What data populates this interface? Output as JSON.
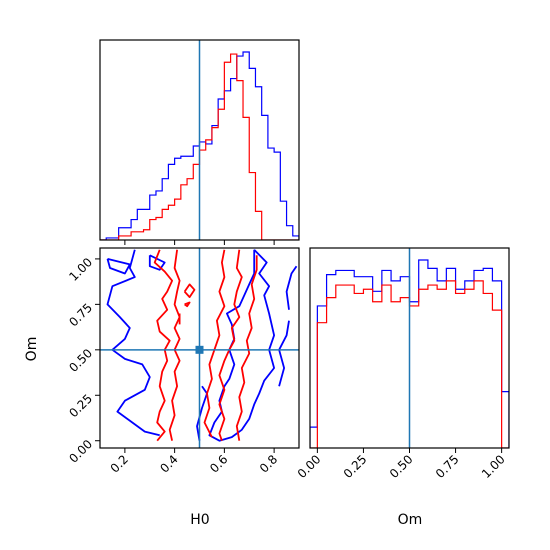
{
  "chart_data": {
    "type": "corner",
    "parameters": [
      "H0",
      "Om"
    ],
    "truths": {
      "H0": 0.5,
      "Om": 0.5
    },
    "colors": {
      "series_a": "#0000ff",
      "series_b": "#ff0000",
      "truth": "#1f77b4"
    },
    "panels": [
      {
        "id": "h0-hist",
        "type": "histogram",
        "xlim": [
          0.1,
          0.9
        ],
        "xticks": [
          0.2,
          0.4,
          0.6,
          0.8
        ],
        "bin_edges": [
          0.1,
          0.125,
          0.15,
          0.175,
          0.2,
          0.225,
          0.25,
          0.275,
          0.3,
          0.325,
          0.35,
          0.375,
          0.4,
          0.425,
          0.45,
          0.475,
          0.5,
          0.525,
          0.55,
          0.575,
          0.6,
          0.625,
          0.65,
          0.675,
          0.7,
          0.725,
          0.75,
          0.775,
          0.8,
          0.825,
          0.85,
          0.875,
          0.9
        ],
        "series": [
          {
            "color": "#0000ff",
            "counts": [
              0,
              1,
              1,
              6,
              6,
              10,
              15,
              15,
              22,
              24,
              30,
              37,
              40,
              41,
              41,
              46,
              48,
              47,
              56,
              69,
              73,
              79,
              90,
              92,
              84,
              75,
              61,
              45,
              43,
              19,
              7,
              2
            ]
          },
          {
            "color": "#ff0000",
            "counts": [
              0,
              0,
              0,
              2,
              2,
              4,
              4,
              5,
              10,
              11,
              15,
              17,
              20,
              27,
              30,
              37,
              44,
              49,
              55,
              64,
              87,
              91,
              78,
              60,
              33,
              14,
              0,
              0,
              0,
              0,
              0,
              0
            ]
          }
        ]
      },
      {
        "id": "h0-om-contours",
        "type": "contour",
        "xlim": [
          0.1,
          0.9
        ],
        "ylim": [
          -0.04,
          1.06
        ],
        "xticks": [
          0.2,
          0.4,
          0.6,
          0.8
        ],
        "yticks": [
          0.0,
          0.25,
          0.5,
          0.75,
          1.0
        ],
        "xlabel": "H0",
        "ylabel": "Om",
        "contours": [
          {
            "color": "#0000ff",
            "points": [
              [
                0.24,
                1.05
              ],
              [
                0.22,
                0.95
              ],
              [
                0.24,
                0.9
              ],
              [
                0.15,
                0.85
              ],
              [
                0.13,
                0.75
              ],
              [
                0.18,
                0.68
              ],
              [
                0.22,
                0.62
              ],
              [
                0.2,
                0.56
              ],
              [
                0.15,
                0.5
              ],
              [
                0.2,
                0.45
              ],
              [
                0.27,
                0.42
              ],
              [
                0.3,
                0.35
              ],
              [
                0.28,
                0.28
              ],
              [
                0.2,
                0.22
              ],
              [
                0.17,
                0.16
              ],
              [
                0.23,
                0.1
              ],
              [
                0.28,
                0.05
              ],
              [
                0.34,
                0.03
              ]
            ]
          },
          {
            "color": "#0000ff",
            "points": [
              [
                0.13,
                1.0
              ],
              [
                0.14,
                0.95
              ],
              [
                0.2,
                0.92
              ],
              [
                0.22,
                0.97
              ],
              [
                0.13,
                1.0
              ]
            ]
          },
          {
            "color": "#0000ff",
            "points": [
              [
                0.3,
                1.02
              ],
              [
                0.3,
                0.96
              ],
              [
                0.34,
                0.94
              ],
              [
                0.36,
                0.98
              ],
              [
                0.3,
                1.02
              ]
            ]
          },
          {
            "color": "#0000ff",
            "points": [
              [
                0.72,
                1.05
              ],
              [
                0.77,
                0.98
              ],
              [
                0.74,
                0.92
              ],
              [
                0.78,
                0.85
              ],
              [
                0.76,
                0.8
              ],
              [
                0.78,
                0.7
              ],
              [
                0.8,
                0.58
              ],
              [
                0.78,
                0.5
              ],
              [
                0.8,
                0.4
              ],
              [
                0.76,
                0.33
              ],
              [
                0.74,
                0.26
              ],
              [
                0.72,
                0.2
              ],
              [
                0.7,
                0.12
              ],
              [
                0.67,
                0.06
              ],
              [
                0.63,
                0.02
              ],
              [
                0.58,
                0.0
              ],
              [
                0.54,
                0.03
              ],
              [
                0.56,
                0.1
              ],
              [
                0.59,
                0.16
              ],
              [
                0.58,
                0.22
              ],
              [
                0.6,
                0.3
              ],
              [
                0.62,
                0.34
              ],
              [
                0.64,
                0.42
              ],
              [
                0.62,
                0.5
              ],
              [
                0.64,
                0.56
              ],
              [
                0.63,
                0.64
              ],
              [
                0.61,
                0.7
              ],
              [
                0.66,
                0.74
              ],
              [
                0.68,
                0.8
              ],
              [
                0.7,
                0.86
              ],
              [
                0.72,
                0.92
              ],
              [
                0.72,
                1.05
              ]
            ]
          },
          {
            "color": "#0000ff",
            "points": [
              [
                0.5,
                0.0
              ],
              [
                0.49,
                0.08
              ],
              [
                0.51,
                0.18
              ],
              [
                0.53,
                0.26
              ],
              [
                0.51,
                0.3
              ]
            ]
          },
          {
            "color": "#0000ff",
            "points": [
              [
                0.86,
                0.72
              ],
              [
                0.85,
                0.82
              ],
              [
                0.87,
                0.92
              ],
              [
                0.89,
                0.96
              ]
            ]
          },
          {
            "color": "#0000ff",
            "points": [
              [
                0.82,
                0.3
              ],
              [
                0.84,
                0.4
              ],
              [
                0.82,
                0.5
              ],
              [
                0.85,
                0.58
              ],
              [
                0.86,
                0.66
              ]
            ]
          },
          {
            "color": "#ff0000",
            "points": [
              [
                0.34,
                1.05
              ],
              [
                0.32,
                0.98
              ],
              [
                0.36,
                0.93
              ],
              [
                0.39,
                0.88
              ],
              [
                0.37,
                0.82
              ],
              [
                0.35,
                0.78
              ],
              [
                0.37,
                0.72
              ],
              [
                0.33,
                0.66
              ],
              [
                0.34,
                0.6
              ],
              [
                0.38,
                0.55
              ],
              [
                0.36,
                0.5
              ],
              [
                0.37,
                0.44
              ],
              [
                0.35,
                0.38
              ],
              [
                0.34,
                0.3
              ],
              [
                0.36,
                0.22
              ],
              [
                0.34,
                0.16
              ],
              [
                0.33,
                0.1
              ],
              [
                0.36,
                0.05
              ],
              [
                0.33,
                0.0
              ]
            ]
          },
          {
            "color": "#ff0000",
            "points": [
              [
                0.41,
                1.05
              ],
              [
                0.4,
                0.95
              ],
              [
                0.42,
                0.88
              ],
              [
                0.41,
                0.82
              ],
              [
                0.4,
                0.75
              ],
              [
                0.42,
                0.68
              ],
              [
                0.4,
                0.62
              ],
              [
                0.42,
                0.56
              ],
              [
                0.4,
                0.5
              ],
              [
                0.42,
                0.44
              ],
              [
                0.4,
                0.38
              ],
              [
                0.41,
                0.3
              ],
              [
                0.39,
                0.22
              ],
              [
                0.4,
                0.14
              ],
              [
                0.38,
                0.06
              ],
              [
                0.39,
                0.0
              ]
            ]
          },
          {
            "color": "#ff0000",
            "points": [
              [
                0.66,
                1.05
              ],
              [
                0.65,
                0.95
              ],
              [
                0.67,
                0.9
              ],
              [
                0.65,
                0.82
              ],
              [
                0.64,
                0.75
              ],
              [
                0.66,
                0.68
              ],
              [
                0.63,
                0.62
              ],
              [
                0.64,
                0.55
              ],
              [
                0.62,
                0.5
              ],
              [
                0.6,
                0.44
              ],
              [
                0.58,
                0.36
              ],
              [
                0.6,
                0.28
              ],
              [
                0.58,
                0.2
              ],
              [
                0.6,
                0.12
              ],
              [
                0.58,
                0.04
              ],
              [
                0.59,
                0.0
              ]
            ]
          },
          {
            "color": "#ff0000",
            "points": [
              [
                0.73,
                1.02
              ],
              [
                0.73,
                0.94
              ],
              [
                0.71,
                0.86
              ],
              [
                0.72,
                0.78
              ],
              [
                0.7,
                0.7
              ],
              [
                0.71,
                0.62
              ],
              [
                0.69,
                0.55
              ],
              [
                0.7,
                0.48
              ],
              [
                0.67,
                0.4
              ],
              [
                0.68,
                0.32
              ],
              [
                0.66,
                0.24
              ],
              [
                0.67,
                0.16
              ],
              [
                0.65,
                0.08
              ],
              [
                0.66,
                0.0
              ]
            ]
          },
          {
            "color": "#ff0000",
            "points": [
              [
                0.55,
                0.02
              ],
              [
                0.52,
                0.1
              ],
              [
                0.54,
                0.18
              ],
              [
                0.53,
                0.26
              ],
              [
                0.55,
                0.34
              ],
              [
                0.54,
                0.42
              ],
              [
                0.56,
                0.5
              ],
              [
                0.58,
                0.58
              ],
              [
                0.57,
                0.66
              ],
              [
                0.6,
                0.74
              ],
              [
                0.58,
                0.82
              ],
              [
                0.6,
                0.9
              ],
              [
                0.59,
                0.98
              ],
              [
                0.6,
                1.05
              ]
            ]
          },
          {
            "color": "#ff0000",
            "points": [
              [
                0.44,
                0.82
              ],
              [
                0.46,
                0.86
              ],
              [
                0.48,
                0.83
              ],
              [
                0.46,
                0.79
              ],
              [
                0.44,
                0.82
              ]
            ]
          },
          {
            "color": "#ff0000",
            "points": [
              [
                0.42,
                0.64
              ],
              [
                0.42,
                0.7
              ]
            ]
          },
          {
            "color": "#ff0000",
            "points": [
              [
                0.44,
                0.75
              ],
              [
                0.46,
                0.76
              ],
              [
                0.45,
                0.74
              ],
              [
                0.44,
                0.75
              ]
            ]
          }
        ]
      },
      {
        "id": "om-hist",
        "type": "histogram",
        "xlim": [
          -0.04,
          1.04
        ],
        "xticks": [
          0.0,
          0.25,
          0.5,
          0.75,
          1.0
        ],
        "xlabel": "Om",
        "bin_edges": [
          -0.04,
          0.0,
          0.05,
          0.1,
          0.15,
          0.2,
          0.25,
          0.3,
          0.35,
          0.4,
          0.45,
          0.5,
          0.55,
          0.6,
          0.65,
          0.7,
          0.75,
          0.8,
          0.85,
          0.9,
          0.95,
          1.0,
          1.04
        ],
        "series": [
          {
            "color": "#0000ff",
            "counts": [
              10,
              68,
              83,
              85,
              85,
              82,
              82,
              75,
              85,
              80,
              82,
              70,
              90,
              86,
              80,
              86,
              76,
              80,
              85,
              86,
              80,
              27
            ]
          },
          {
            "color": "#ff0000",
            "counts": [
              0,
              60,
              72,
              78,
              78,
              74,
              76,
              70,
              78,
              70,
              72,
              68,
              76,
              78,
              76,
              80,
              74,
              76,
              80,
              74,
              66,
              0
            ]
          }
        ]
      }
    ]
  }
}
